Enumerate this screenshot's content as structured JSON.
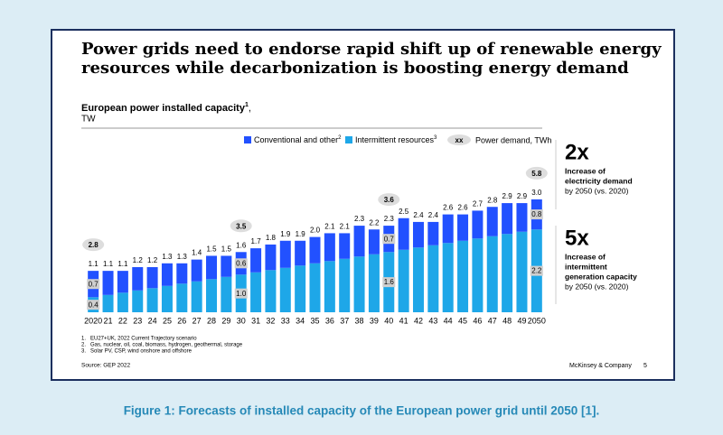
{
  "chart_data": {
    "type": "bar",
    "stacked": true,
    "title_lines": [
      "Power grids need to endorse rapid shift up of renewable energy",
      "resources while decarbonization is boosting energy demand"
    ],
    "subtitle": "European power installed capacity",
    "subtitle_note": "1",
    "subtitle_sep": ",",
    "unit": "TW",
    "categories": [
      "2020",
      "21",
      "22",
      "23",
      "24",
      "25",
      "26",
      "27",
      "28",
      "29",
      "30",
      "31",
      "32",
      "33",
      "34",
      "35",
      "36",
      "37",
      "38",
      "39",
      "40",
      "41",
      "42",
      "43",
      "44",
      "45",
      "46",
      "47",
      "48",
      "49",
      "2050"
    ],
    "series": [
      {
        "name": "Intermittent resources",
        "note": "3",
        "color": "#1ea7e8",
        "values": [
          0.4,
          0.46,
          0.52,
          0.58,
          0.64,
          0.7,
          0.76,
          0.82,
          0.88,
          0.94,
          1.0,
          1.06,
          1.12,
          1.18,
          1.24,
          1.3,
          1.36,
          1.42,
          1.48,
          1.54,
          1.6,
          1.66,
          1.72,
          1.78,
          1.84,
          1.9,
          1.96,
          2.02,
          2.08,
          2.14,
          2.2
        ],
        "value_labels": [
          "0.4",
          null,
          null,
          null,
          null,
          null,
          null,
          null,
          null,
          null,
          "1.0",
          null,
          null,
          null,
          null,
          null,
          null,
          null,
          null,
          null,
          "1.6",
          null,
          null,
          null,
          null,
          null,
          null,
          null,
          null,
          null,
          "2.2"
        ]
      },
      {
        "name": "Conventional and other",
        "note": "2",
        "color": "#2251ff",
        "values": [
          0.7,
          0.64,
          0.58,
          0.62,
          0.56,
          0.6,
          0.54,
          0.58,
          0.62,
          0.56,
          0.6,
          0.64,
          0.68,
          0.72,
          0.66,
          0.7,
          0.74,
          0.68,
          0.82,
          0.66,
          0.7,
          0.84,
          0.68,
          0.62,
          0.76,
          0.7,
          0.74,
          0.78,
          0.82,
          0.76,
          0.8
        ],
        "value_labels": [
          "0.7",
          null,
          null,
          null,
          null,
          null,
          null,
          null,
          null,
          null,
          "0.6",
          null,
          null,
          null,
          null,
          null,
          null,
          null,
          null,
          null,
          "0.7",
          null,
          null,
          null,
          null,
          null,
          null,
          null,
          null,
          null,
          "0.8"
        ]
      }
    ],
    "total_labels": [
      "1.1",
      "1.1",
      "1.1",
      "1.2",
      "1.2",
      "1.3",
      "1.3",
      "1.4",
      "1.5",
      "1.5",
      "1.6",
      "1.7",
      "1.8",
      "1.9",
      "1.9",
      "2.0",
      "2.1",
      "2.1",
      "2.3",
      "2.2",
      "2.3",
      "2.5",
      "2.4",
      "2.4",
      "2.6",
      "2.6",
      "2.7",
      "2.8",
      "2.9",
      "2.9",
      "3.0"
    ],
    "demand": [
      2.8,
      null,
      null,
      null,
      null,
      null,
      null,
      null,
      null,
      null,
      3.5,
      null,
      null,
      null,
      null,
      null,
      null,
      null,
      null,
      null,
      3.6,
      null,
      null,
      null,
      null,
      null,
      null,
      null,
      null,
      null,
      5.8
    ],
    "demand_legend": {
      "symbol": "xx",
      "label": "Power demand, TWh"
    },
    "annotations": [
      {
        "big": "2x",
        "lines": [
          "Increase of",
          "electricity demand",
          "by 2050 (vs. 2020)"
        ]
      },
      {
        "big": "5x",
        "lines": [
          "Increase of",
          "intermittent",
          "generation capacity",
          "by 2050 (vs. 2020)"
        ]
      }
    ],
    "footnotes": [
      {
        "number": "1.",
        "text": "EU27+UK, 2022 Current Trajectory scenario"
      },
      {
        "number": "2.",
        "text": "Gas, nuclear, oil, coal, biomass, hydrogen, geothermal, storage"
      },
      {
        "number": "3.",
        "text": "Solar PV, CSP, wind onshore and offshore"
      }
    ],
    "source": "Source: GEP 2022",
    "brand": "McKinsey & Company",
    "page_number": "5"
  },
  "caption": "Figure 1: Forecasts of installed capacity of the European power grid until 2050 [1]."
}
